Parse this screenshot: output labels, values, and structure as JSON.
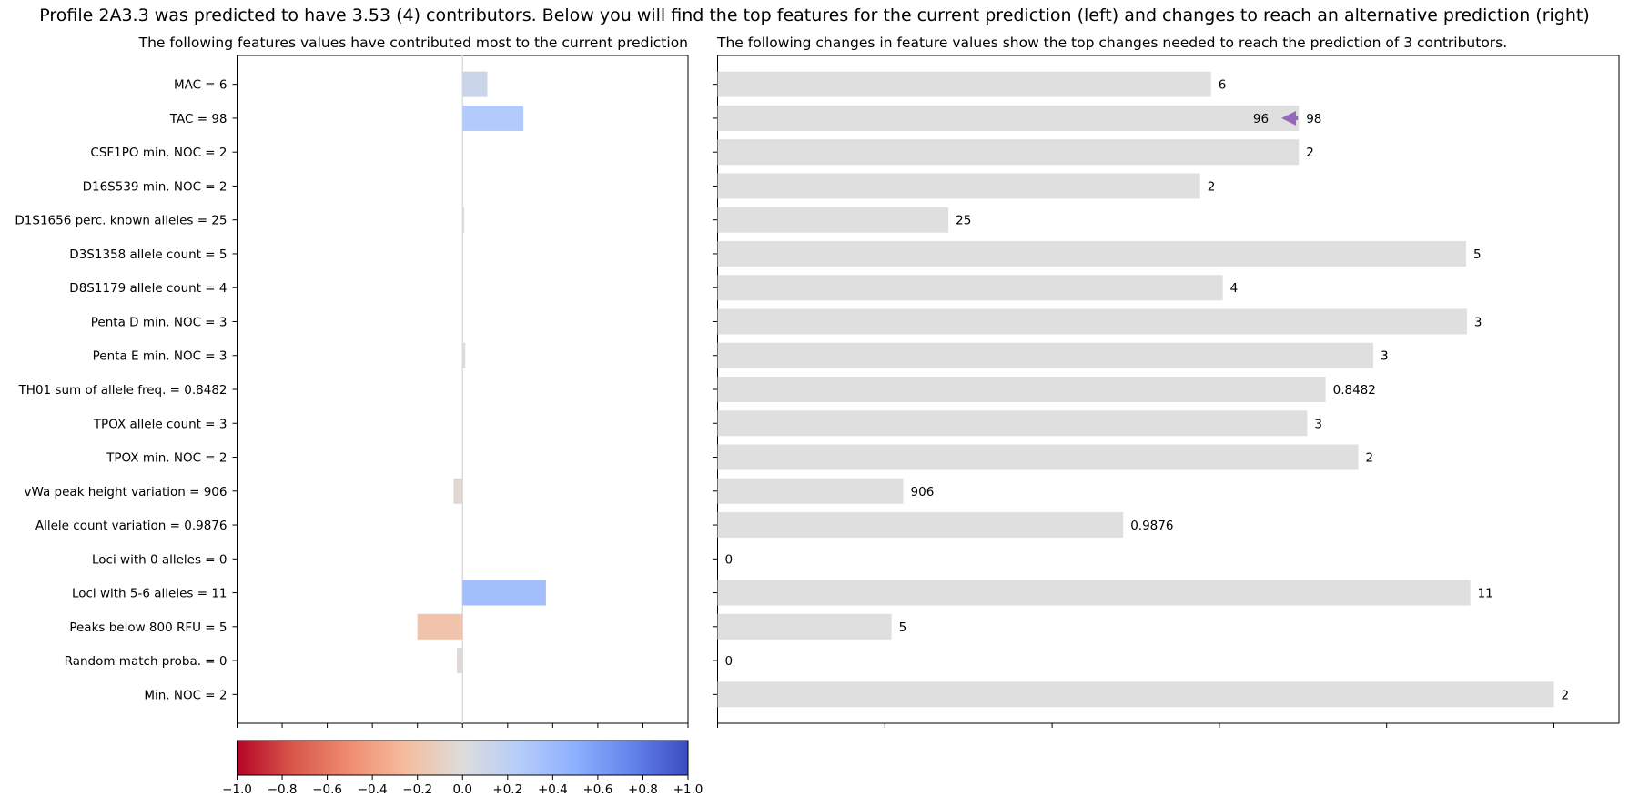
{
  "title": "Profile 2A3.3 was predicted to have 3.53 (4) contributors. Below you will find the top features for the current prediction (left) and changes to reach an alternative prediction (right)",
  "left_subtitle": "The following features values have contributed most to the current prediction",
  "right_subtitle": "The following changes in feature values show the top changes needed to reach the prediction of 3 contributors.",
  "colors": {
    "bar_gray": "#dfdfdf",
    "arrow": "#9467bd",
    "zero_line": "#dddddd",
    "colormap": "coolwarm"
  },
  "chart_data": [
    {
      "type": "bar",
      "orientation": "horizontal",
      "name": "feature contributions",
      "categories": [
        "MAC = 6",
        "TAC = 98",
        "CSF1PO min. NOC = 2",
        "D16S539 min. NOC = 2",
        "D1S1656 perc. known alleles = 25",
        "D3S1358 allele count = 5",
        "D8S1179 allele count = 4",
        "Penta D min. NOC = 3",
        "Penta E min. NOC = 3",
        "TH01 sum of allele freq. = 0.8482",
        "TPOX allele count = 3",
        "TPOX min. NOC = 2",
        "vWa peak height variation = 906",
        "Allele count variation = 0.9876",
        "Loci with 0 alleles = 0",
        "Loci with 5-6 alleles = 11",
        "Peaks below 800 RFU = 5",
        "Random match proba. = 0",
        "Min. NOC = 2"
      ],
      "values": [
        0.11,
        0.27,
        0,
        0,
        0.008,
        0,
        0,
        0,
        0.012,
        0,
        0,
        0,
        -0.04,
        0,
        0,
        0.37,
        -0.2,
        -0.025,
        0
      ],
      "xlim": [
        -1,
        1
      ],
      "colorbar": {
        "colormap": "coolwarm",
        "range": [
          -1,
          1
        ],
        "ticks": [
          "−1.0",
          "−0.8",
          "−0.6",
          "−0.4",
          "−0.2",
          "0.0",
          "+0.2",
          "+0.4",
          "+0.6",
          "+0.8",
          "+1.0"
        ]
      }
    },
    {
      "type": "bar",
      "orientation": "horizontal",
      "name": "feature value changes",
      "value_labels": [
        "6",
        "98",
        "2",
        "2",
        "25",
        "5",
        "4",
        "3",
        "3",
        "0.8482",
        "3",
        "2",
        "906",
        "0.9876",
        "0",
        "11",
        "5",
        "0",
        "2"
      ],
      "relative_values": [
        0.59,
        0.695,
        0.695,
        0.577,
        0.276,
        0.895,
        0.604,
        0.896,
        0.784,
        0.727,
        0.705,
        0.766,
        0.222,
        0.485,
        0,
        0.9,
        0.208,
        0,
        1.0
      ],
      "change": {
        "category": "TAC = 98",
        "from": "98",
        "to": "96",
        "to_relative_value": 0.672
      }
    }
  ]
}
